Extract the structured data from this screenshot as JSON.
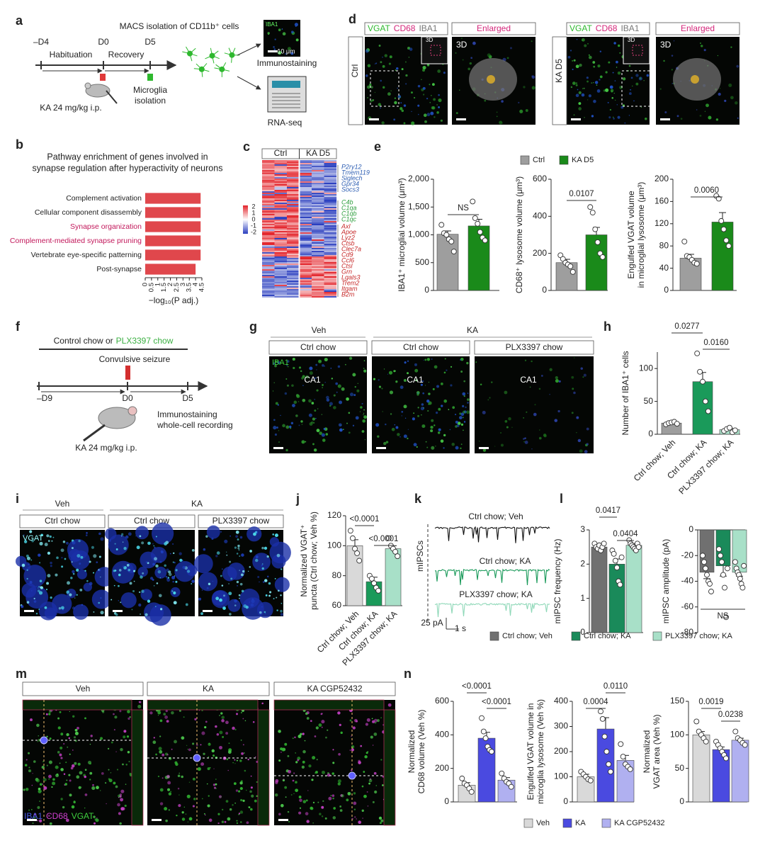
{
  "panel_labels": [
    "a",
    "b",
    "c",
    "d",
    "e",
    "f",
    "g",
    "h",
    "i",
    "j",
    "k",
    "l",
    "m",
    "n"
  ],
  "a": {
    "timeline": [
      "–D4",
      "D0",
      "D5"
    ],
    "phases": [
      "Habituation",
      "Recovery"
    ],
    "injection": "KA 24 mg/kg i.p.",
    "isolation": [
      "Microglia",
      "isolation"
    ],
    "macs": "MACS isolation of CD11b⁺ cells",
    "inset_label": "IBA1",
    "scale": "10 μm",
    "outputs": [
      "Immunostaining",
      "RNA-seq"
    ]
  },
  "c": {
    "groups": [
      "Ctrl",
      "KA D5"
    ],
    "colorbar": [
      2,
      1,
      0,
      -1,
      -2
    ],
    "gene_groups": [
      {
        "color": "#2f5fb3",
        "genes": [
          "P2ry12",
          "Tmem119",
          "Siglech",
          "Gpr34",
          "Socs3"
        ]
      },
      {
        "color": "#2e9e3e",
        "genes": [
          "C4b",
          "C1qa",
          "C1qb",
          "C1qc"
        ]
      },
      {
        "color": "#c62828",
        "genes": [
          "Axl",
          "Apoe",
          "Lyz2",
          "Ctsb",
          "Clec7a",
          "Cd9",
          "Ccl6",
          "Ctsl",
          "Grn",
          "Lgals3",
          "Trem2",
          "Itgam",
          "B2m"
        ]
      }
    ]
  },
  "d": {
    "stains": [
      "VGAT",
      "CD68",
      "IBA1"
    ],
    "stain_colors": [
      "#2eb82e",
      "#d4257a",
      "#777777"
    ],
    "enlarged": "Enlarged",
    "view": "3D",
    "conditions": [
      "Ctrl",
      "KA D5"
    ]
  },
  "f": {
    "diet_prefix": "Control chow or",
    "diet_drug": "PLX3397 chow",
    "event": "Convulsive seizure",
    "timeline": [
      "–D9",
      "D0",
      "D5"
    ],
    "outputs": [
      "Immunostaining",
      "whole-cell recording"
    ],
    "injection": "KA 24 mg/kg i.p."
  },
  "g": {
    "treatments": [
      "Veh",
      "KA"
    ],
    "diets": [
      "Ctrl chow",
      "Ctrl chow",
      "PLX3397 chow"
    ],
    "stain": "IBA1",
    "region": "CA1"
  },
  "i": {
    "treatments": [
      "Veh",
      "KA"
    ],
    "diets": [
      "Ctrl chow",
      "Ctrl chow",
      "PLX3397 chow"
    ],
    "stain": "VGAT"
  },
  "k": {
    "traces": [
      "Ctrl chow; Veh",
      "Ctrl chow; KA",
      "PLX3397 chow; KA"
    ],
    "ylabel": "mIPSCs",
    "scale_y": "25 pA",
    "scale_x": "1 s"
  },
  "m": {
    "conditions": [
      "Veh",
      "KA",
      "KA CGP52432"
    ],
    "stains": [
      "IBA1",
      "CD68",
      "VGAT"
    ]
  },
  "chart_data": [
    {
      "type": "bar",
      "horizontal": true,
      "title": [
        "Pathway enrichment of genes involved in",
        "synapse regulation after hyperactivity of neurons"
      ],
      "categories": [
        "Complement activation",
        "Cellular component disassembly",
        "Synapse organization",
        "Complement-mediated synapse pruning",
        "Vertebrate eye-specific patterning",
        "Post-synapse"
      ],
      "category_colors": [
        "#222222",
        "#222222",
        "#c2185b",
        "#c2185b",
        "#222222",
        "#222222"
      ],
      "values": [
        4.4,
        4.4,
        4.4,
        4.4,
        4.4,
        4.0
      ],
      "color": "#e0474c",
      "xlim": [
        0,
        4.5
      ],
      "xticks": [
        0,
        0.5,
        1,
        1.5,
        2,
        2.5,
        3,
        3.5,
        4,
        4.5
      ],
      "xlabel": "−log₁₀(P adj.)"
    },
    {
      "type": "bar",
      "categories": [
        "Ctrl",
        "KA D5"
      ],
      "colors": [
        "#9e9e9e",
        "#1a8a1a"
      ],
      "values": [
        1010,
        1160
      ],
      "errors": [
        60,
        120
      ],
      "points": [
        [
          1180,
          1030,
          1000,
          920,
          880,
          700
        ],
        [
          1600,
          1300,
          1200,
          1050,
          950,
          900
        ]
      ],
      "ylim": [
        0,
        2000
      ],
      "yticks": [
        0,
        500,
        {
          "value": 1000,
          "label": "1,000"
        },
        {
          "value": 1500,
          "label": "1,500"
        },
        {
          "value": 2000,
          "label": "2,000"
        }
      ],
      "ylabel": [
        "IBA1⁺ microglial volume (μm³)"
      ],
      "annotations": [
        "NS"
      ]
    },
    {
      "type": "bar",
      "colors": [
        "#9e9e9e",
        "#1a8a1a"
      ],
      "values": [
        150,
        300
      ],
      "errors": [
        18,
        40
      ],
      "points": [
        [
          190,
          170,
          150,
          140,
          130,
          100
        ],
        [
          450,
          420,
          330,
          260,
          200,
          180
        ]
      ],
      "ylim": [
        0,
        600
      ],
      "yticks": [
        0,
        200,
        400,
        600
      ],
      "ylabel": [
        "CD68⁺ lysosome volume (μm³)"
      ],
      "annotations": [
        "0.0107"
      ]
    },
    {
      "type": "bar",
      "colors": [
        "#9e9e9e",
        "#1a8a1a"
      ],
      "values": [
        58,
        123
      ],
      "errors": [
        7,
        17
      ],
      "points": [
        [
          88,
          62,
          60,
          55,
          50,
          48
        ],
        [
          170,
          165,
          125,
          110,
          90,
          80
        ]
      ],
      "ylim": [
        0,
        200
      ],
      "yticks": [
        0,
        40,
        80,
        120,
        160,
        200
      ],
      "ylabel": [
        "Engulfed VGAT volume",
        "in microglial lysosome (μm³)"
      ],
      "annotations": [
        "0.0060"
      ]
    },
    {
      "type": "bar",
      "categories": [
        "Ctrl chow; Veh",
        "Ctrl chow; KA",
        "PLX3397 chow; KA"
      ],
      "colors": [
        "#9e9e9e",
        "#1a9a5a",
        "#a8e0c8"
      ],
      "values": [
        17,
        80,
        7
      ],
      "errors": [
        2,
        14,
        2
      ],
      "points": [
        [
          15,
          17,
          18,
          19,
          16
        ],
        [
          123,
          95,
          80,
          50,
          35
        ],
        [
          5,
          8,
          10,
          3,
          6
        ]
      ],
      "ylim": [
        0,
        125
      ],
      "yticks": [
        0,
        50,
        100
      ],
      "ylabel": [
        "Number of IBA1⁺ cells"
      ],
      "annotations": [
        "0.0277",
        "0.0160"
      ]
    },
    {
      "type": "bar",
      "categories": [
        "Ctrl chow; Veh",
        "Ctrl chow; KA",
        "PLX3397 chow; KA"
      ],
      "colors": [
        "#d9d9d9",
        "#1a9a5a",
        "#a8e0c8"
      ],
      "values": [
        100,
        76,
        98
      ],
      "errors": [
        4,
        3,
        2
      ],
      "points": [
        [
          110,
          105,
          98,
          95,
          90
        ],
        [
          80,
          78,
          75,
          72,
          70
        ],
        [
          105,
          100,
          98,
          96,
          93
        ]
      ],
      "ylim": [
        60,
        120
      ],
      "yticks": [
        60,
        80,
        100,
        120
      ],
      "ylabel": [
        "Normalized VGAT⁺",
        "puncta (Ctrl chow; Veh %)"
      ],
      "annotations": [
        "<0.0001",
        "<0.0001"
      ]
    },
    {
      "type": "bar",
      "categories": [
        "Ctrl chow; Veh",
        "Ctrl chow; KA",
        "PLX3397 chow; KA"
      ],
      "colors": [
        "#707070",
        "#1a8a5a",
        "#a8e0c8"
      ],
      "values": [
        2.5,
        2.0,
        2.55
      ],
      "errors": [
        0.07,
        0.15,
        0.05
      ],
      "points": [
        [
          2.6,
          2.5,
          2.45,
          2.55,
          2.4,
          2.5,
          2.6
        ],
        [
          2.4,
          2.3,
          2.1,
          1.9,
          1.5,
          1.4,
          2.2
        ],
        [
          2.7,
          2.6,
          2.55,
          2.5,
          2.45,
          2.4,
          2.6,
          2.5
        ]
      ],
      "ylim": [
        0,
        3
      ],
      "yticks": [
        0,
        1,
        2,
        3
      ],
      "ylabel": [
        "mIPSC frequency (Hz)"
      ],
      "annotations": [
        "0.0417",
        "0.0404"
      ]
    },
    {
      "type": "bar",
      "colors": [
        "#707070",
        "#1a8a5a",
        "#a8e0c8"
      ],
      "values": [
        -33,
        -28,
        -33
      ],
      "errors": [
        5,
        8,
        3
      ],
      "points": [
        [
          -20,
          -25,
          -30,
          -35,
          -40,
          -42,
          -48
        ],
        [
          -15,
          -20,
          -25,
          -35,
          -45,
          -68,
          -30
        ],
        [
          -25,
          -30,
          -33,
          -35,
          -38,
          -42,
          -45,
          -28
        ]
      ],
      "ylim": [
        -80,
        0
      ],
      "yticks": [
        -80,
        -60,
        -40,
        -20,
        0
      ],
      "ylabel": [
        "mIPSC amplitude (pA)"
      ],
      "annotations": [
        "NS"
      ]
    },
    {
      "type": "bar",
      "categories": [
        "Veh",
        "KA",
        "KA CGP52432"
      ],
      "colors": [
        "#d9d9d9",
        "#4a4ae0",
        "#b0b0f0"
      ],
      "values": [
        100,
        380,
        130
      ],
      "errors": [
        15,
        35,
        15
      ],
      "points": [
        [
          140,
          110,
          100,
          80,
          60
        ],
        [
          500,
          420,
          380,
          330,
          310,
          300
        ],
        [
          170,
          140,
          120,
          110,
          90
        ]
      ],
      "ylim": [
        0,
        600
      ],
      "yticks": [
        0,
        200,
        400,
        600
      ],
      "ylabel": [
        "Normalized",
        "CD68 volume (Veh %)"
      ],
      "annotations": [
        "<0.0001",
        "<0.0001"
      ]
    },
    {
      "type": "bar",
      "colors": [
        "#d9d9d9",
        "#4a4ae0",
        "#b0b0f0"
      ],
      "values": [
        100,
        290,
        165
      ],
      "errors": [
        10,
        45,
        20
      ],
      "points": [
        [
          120,
          110,
          100,
          90,
          85
        ],
        [
          360,
          330,
          260,
          200,
          150,
          120
        ],
        [
          230,
          180,
          150,
          140,
          130
        ]
      ],
      "ylim": [
        0,
        400
      ],
      "yticks": [
        0,
        100,
        200,
        300,
        400
      ],
      "ylabel": [
        "Engulfed VGAT volume in",
        "microglia lysosome (Veh %)"
      ],
      "annotations": [
        "0.0004",
        "0.0110"
      ]
    },
    {
      "type": "bar",
      "colors": [
        "#d9d9d9",
        "#4a4ae0",
        "#b0b0f0"
      ],
      "values": [
        100,
        78,
        92
      ],
      "errors": [
        5,
        4,
        3
      ],
      "points": [
        [
          120,
          105,
          100,
          95,
          90
        ],
        [
          90,
          85,
          80,
          75,
          70,
          65
        ],
        [
          105,
          95,
          92,
          88,
          85
        ]
      ],
      "ylim": [
        0,
        150
      ],
      "yticks": [
        0,
        50,
        100,
        150
      ],
      "ylabel": [
        "Normalized",
        "VGAT area (Veh %)"
      ],
      "annotations": [
        "0.0019",
        "0.0238"
      ]
    }
  ]
}
